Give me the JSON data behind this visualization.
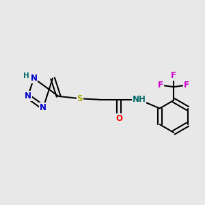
{
  "bg_color": "#e8e8e8",
  "bond_color": "#000000",
  "N_color": "#0000cc",
  "O_color": "#ff0000",
  "S_color": "#aaaa00",
  "F_color": "#cc00cc",
  "NH_color": "#006666",
  "font_size": 8.5,
  "bond_width": 1.5,
  "figsize": [
    3.0,
    3.0
  ],
  "dpi": 100,
  "xlim": [
    0,
    9
  ],
  "ylim": [
    0,
    9
  ]
}
